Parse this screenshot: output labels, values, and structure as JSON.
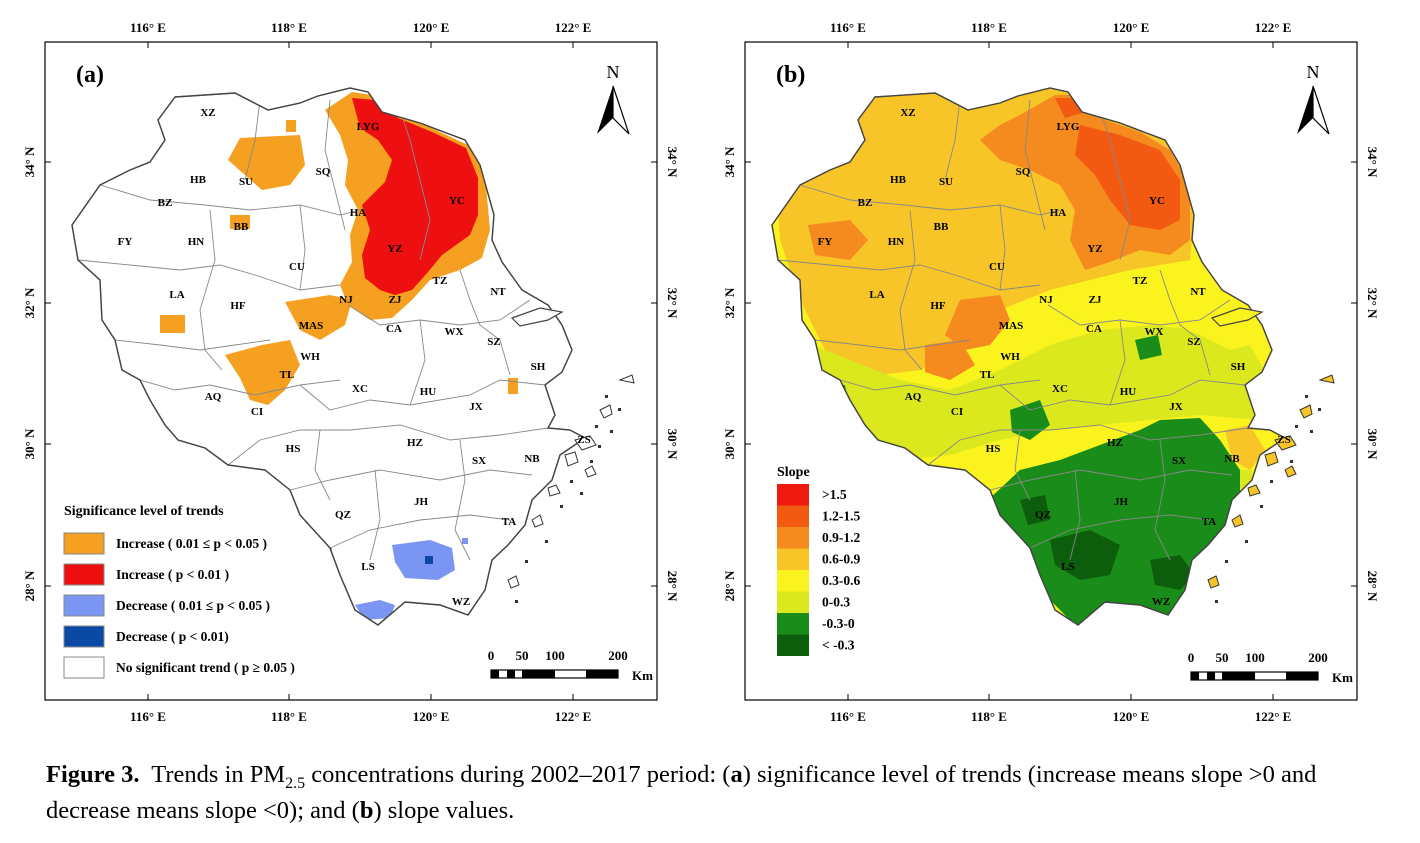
{
  "panels": [
    {
      "id": "a",
      "label": "(a)",
      "cities": [
        "XZ",
        "LYG",
        "HB",
        "SU",
        "SQ",
        "YC",
        "BZ",
        "HA",
        "BB",
        "FY",
        "HN",
        "YZ",
        "CU",
        "TZ",
        "LA",
        "NT",
        "HF",
        "NJ",
        "ZJ",
        "MAS",
        "CA",
        "WX",
        "SZ",
        "WH",
        "SH",
        "TL",
        "AQ",
        "CI",
        "XC",
        "HU",
        "JX",
        "ZS",
        "HS",
        "HZ",
        "SX",
        "NB",
        "JH",
        "QZ",
        "TA",
        "LS",
        "WZ"
      ],
      "legend": {
        "title": "Significance level of trends",
        "items": [
          {
            "label": "Increase ( 0.01 ≤ p < 0.05 )",
            "color": "#f5a020"
          },
          {
            "label": "Increase ( p < 0.01 )",
            "color": "#ee1010"
          },
          {
            "label": "Decrease ( 0.01 ≤ p < 0.05 )",
            "color": "#7b96f2"
          },
          {
            "label": "Decrease ( p < 0.01)",
            "color": "#0a4aa5"
          },
          {
            "label": "No significant trend ( p ≥ 0.05 )",
            "color": "#ffffff"
          }
        ]
      }
    },
    {
      "id": "b",
      "label": "(b)",
      "cities": [
        "XZ",
        "LYG",
        "HB",
        "SU",
        "SQ",
        "YC",
        "BZ",
        "HA",
        "BB",
        "FY",
        "HN",
        "YZ",
        "CU",
        "TZ",
        "LA",
        "NT",
        "HF",
        "NJ",
        "ZJ",
        "MAS",
        "CA",
        "WX",
        "SZ",
        "WH",
        "SH",
        "TL",
        "AQ",
        "CI",
        "XC",
        "HU",
        "JX",
        "ZS",
        "HS",
        "HZ",
        "SX",
        "NB",
        "JH",
        "QZ",
        "TA",
        "LS",
        "WZ"
      ],
      "legend": {
        "title": "Slope",
        "items": [
          {
            "label": ">1.5",
            "color": "#ee1a10"
          },
          {
            "label": "1.2-1.5",
            "color": "#f25a12"
          },
          {
            "label": "0.9-1.2",
            "color": "#f58a1e"
          },
          {
            "label": "0.6-0.9",
            "color": "#f7c528"
          },
          {
            "label": "0.3-0.6",
            "color": "#fbf31e"
          },
          {
            "label": "0-0.3",
            "color": "#dce81e"
          },
          {
            "label": "-0.3-0",
            "color": "#1a8c1a"
          },
          {
            "label": "< -0.3",
            "color": "#0c5e0c"
          }
        ]
      }
    }
  ],
  "axes": {
    "lon_ticks": [
      "116° E",
      "118° E",
      "120° E",
      "122° E"
    ],
    "lat_ticks": [
      "34° N",
      "32° N",
      "30° N",
      "28° N"
    ]
  },
  "north_label": "N",
  "scalebar": {
    "ticks": [
      "0",
      "50",
      "100",
      "200"
    ],
    "unit": "Km"
  },
  "caption": {
    "figure": "Figure 3.",
    "text_pre": "Trends in PM",
    "sub": "2.5",
    "text_post": " concentrations during 2002–2017 period: (",
    "a": "a",
    "text_a": ") significance level of trends (increase means slope >0 and decrease means slope <0); and (",
    "b": "b",
    "text_b": ") slope values."
  }
}
